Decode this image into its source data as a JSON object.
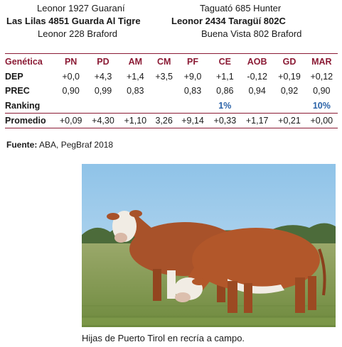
{
  "pedigree": {
    "left": [
      {
        "text": "Leonor 1927 Guaraní",
        "bold": false
      },
      {
        "text": "Las Lilas 4851 Guarda Al Tigre",
        "bold": true
      },
      {
        "text": "Leonor 228 Braford",
        "bold": false
      }
    ],
    "right": [
      {
        "text": "Taguató 685 Hunter",
        "bold": false
      },
      {
        "text": "Leonor 2434 Taragüí 802C",
        "bold": true
      },
      {
        "text": "Buena Vista 802 Braford",
        "bold": false
      }
    ]
  },
  "table": {
    "header_label": "Genética",
    "columns": [
      "PN",
      "PD",
      "AM",
      "CM",
      "PF",
      "CE",
      "AOB",
      "GD",
      "MAR"
    ],
    "rows": [
      {
        "label": "DEP",
        "values": [
          "+0,0",
          "+4,3",
          "+1,4",
          "+3,5",
          "+9,0",
          "+1,1",
          "-0,12",
          "+0,19",
          "+0,12"
        ]
      },
      {
        "label": "PREC",
        "values": [
          "0,90",
          "0,99",
          "0,83",
          "",
          "0,83",
          "0,86",
          "0,94",
          "0,92",
          "0,90"
        ]
      },
      {
        "label": "Ranking",
        "values": [
          "",
          "",
          "",
          "",
          "",
          "1%",
          "",
          "",
          "10%"
        ]
      },
      {
        "label": "Promedio",
        "values": [
          "+0,09",
          "+4,30",
          "+1,10",
          "3,26",
          "+9,14",
          "+0,33",
          "+1,17",
          "+0,21",
          "+0,00"
        ]
      }
    ]
  },
  "source": {
    "label": "Fuente:",
    "text": " ABA, PegBraf 2018"
  },
  "photo": {
    "alt": "Two red and white Braford heifers grazing in a pasture"
  },
  "caption": "Hijas de Puerto Tirol en recría a campo.",
  "colors": {
    "accent": "#8b1b35",
    "ranking_blue": "#2b63a8"
  }
}
